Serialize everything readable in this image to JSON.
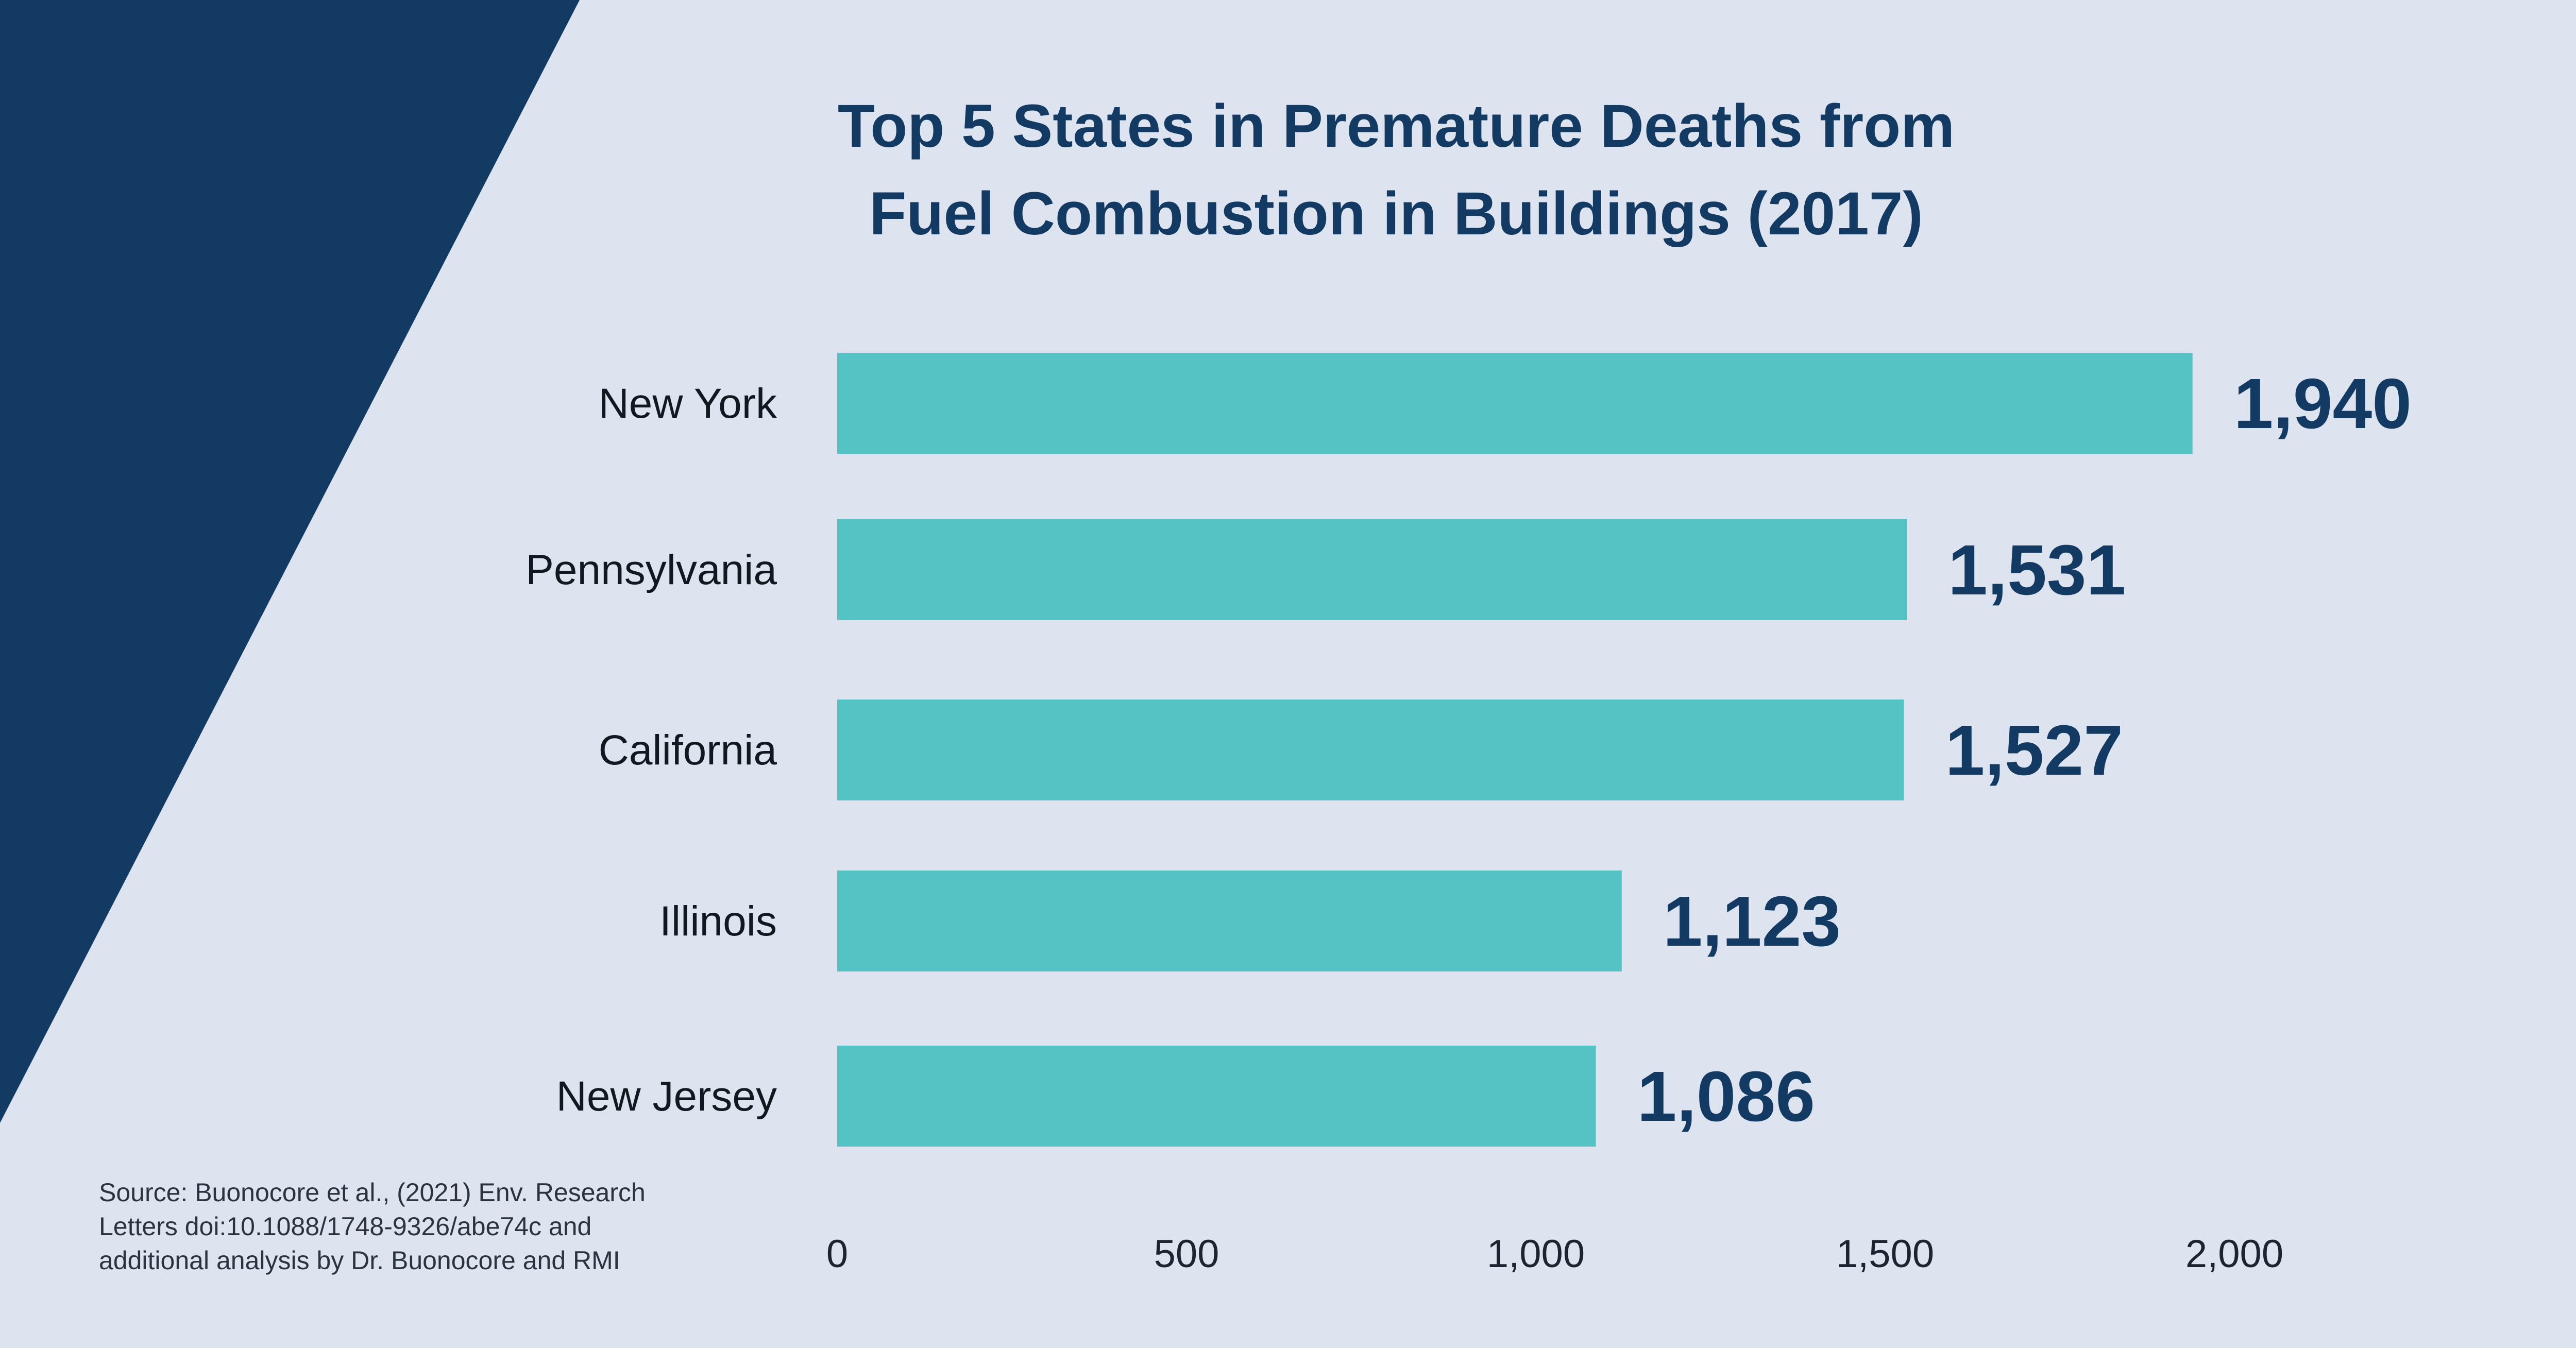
{
  "colors": {
    "background": "#dde3ef",
    "corner_band": "#123a62",
    "bar": "#55c3c4",
    "title": "#123a62",
    "value_label": "#123a62"
  },
  "chart_data": {
    "type": "bar",
    "orientation": "horizontal",
    "title_lines": [
      "Top 5 States in Premature Deaths from",
      "Fuel Combustion in Buildings (2017)"
    ],
    "categories": [
      "New York",
      "Pennsylvania",
      "California",
      "Illinois",
      "New Jersey"
    ],
    "values": [
      1940,
      1531,
      1527,
      1123,
      1086
    ],
    "value_labels": [
      "1,940",
      "1,531",
      "1,527",
      "1,123",
      "1,086"
    ],
    "x_ticks": [
      0,
      500,
      1000,
      1500,
      2000
    ],
    "x_tick_labels": [
      "0",
      "500",
      "1,000",
      "1,500",
      "2,000"
    ],
    "xlim": [
      0,
      2000
    ],
    "xlabel": "",
    "ylabel": "",
    "grid": false,
    "legend": null
  },
  "source": {
    "lines": [
      "Source: Buonocore et al., (2021) Env. Research",
      "Letters doi:10.1088/1748-9326/abe74c and",
      "additional analysis by Dr. Buonocore and RMI"
    ]
  }
}
